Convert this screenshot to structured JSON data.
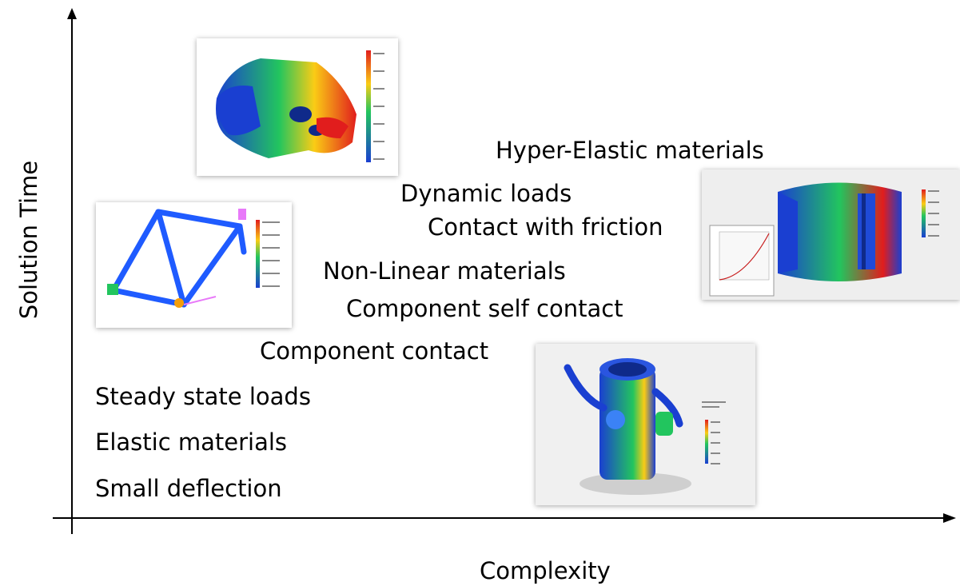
{
  "axes": {
    "x_label": "Complexity",
    "y_label": "Solution Time"
  },
  "items": [
    {
      "id": "small-deflection",
      "label": "Small deflection"
    },
    {
      "id": "elastic-materials",
      "label": "Elastic materials"
    },
    {
      "id": "steady-state-loads",
      "label": "Steady state loads"
    },
    {
      "id": "component-contact",
      "label": "Component contact"
    },
    {
      "id": "component-self-contact",
      "label": "Component self contact"
    },
    {
      "id": "non-linear-materials",
      "label": "Non-Linear materials"
    },
    {
      "id": "contact-with-friction",
      "label": "Contact with friction"
    },
    {
      "id": "dynamic-loads",
      "label": "Dynamic loads"
    },
    {
      "id": "hyper-elastic-materials",
      "label": "Hyper-Elastic materials"
    }
  ],
  "images": [
    {
      "id": "stress-plot-casting",
      "subject": "stress result on cast part"
    },
    {
      "id": "stress-plot-bike-frame",
      "subject": "stress result on bicycle frame"
    },
    {
      "id": "stress-plot-bushing",
      "subject": "stress result on hyper-elastic bushing with force-displacement graph"
    },
    {
      "id": "stress-plot-clamp",
      "subject": "stress result on clamp assembly"
    }
  ],
  "colors": {
    "axis": "#000000",
    "stress_low": "#1a3fd1",
    "stress_mid": "#22c55e",
    "stress_high": "#e11d1d"
  }
}
